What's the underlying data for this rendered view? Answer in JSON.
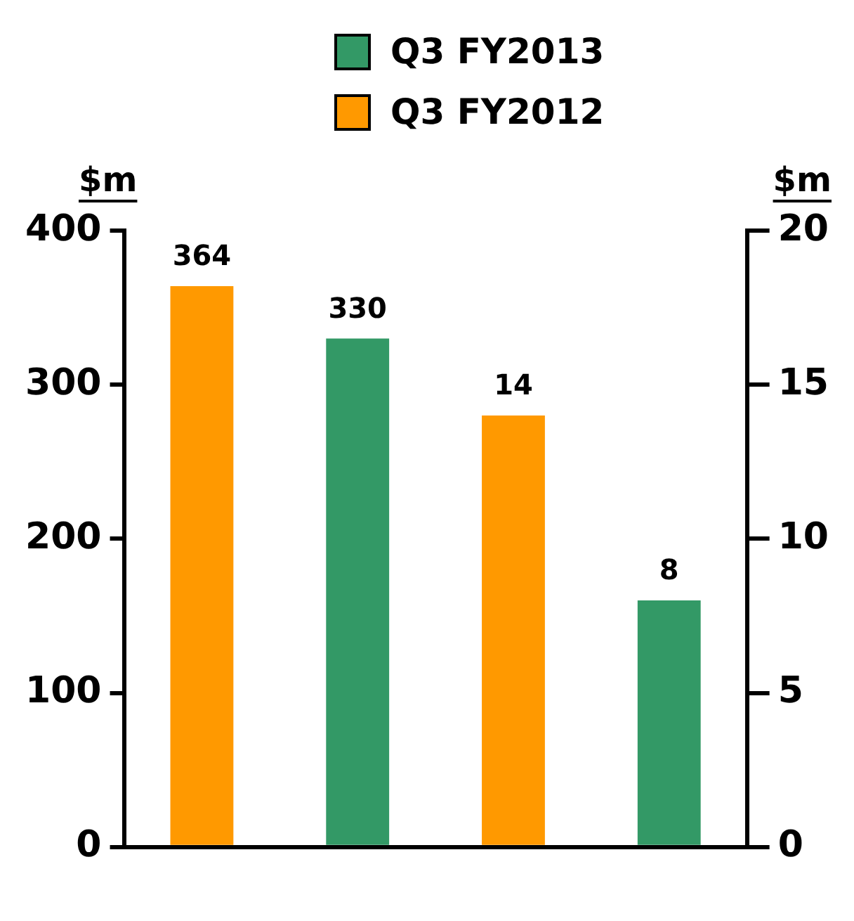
{
  "chart_data": {
    "type": "bar",
    "ylabel": "$m",
    "y2label": "$m",
    "categories": [
      null,
      null,
      null,
      null
    ],
    "series": [
      {
        "name": "Q3 FY2013",
        "color": "#339966",
        "values": [
          null,
          330,
          null,
          null
        ]
      },
      {
        "name": "Q3 FY2012",
        "color": "#ff9900",
        "values": [
          364,
          null,
          null,
          null
        ]
      },
      {
        "color": "#ff9900",
        "axis": "y2",
        "values": [
          null,
          null,
          14,
          null
        ]
      },
      {
        "color": "#339966",
        "axis": "y2",
        "values": [
          null,
          null,
          null,
          8
        ]
      }
    ],
    "ylim": [
      0,
      400
    ],
    "yticks": [
      0,
      100,
      200,
      300,
      400
    ],
    "y2lim": [
      0,
      20
    ],
    "y2ticks": [
      0,
      5,
      10,
      15,
      20
    ],
    "grid": false,
    "legend": "top",
    "data_labels": true,
    "tick_labels": "y"
  }
}
